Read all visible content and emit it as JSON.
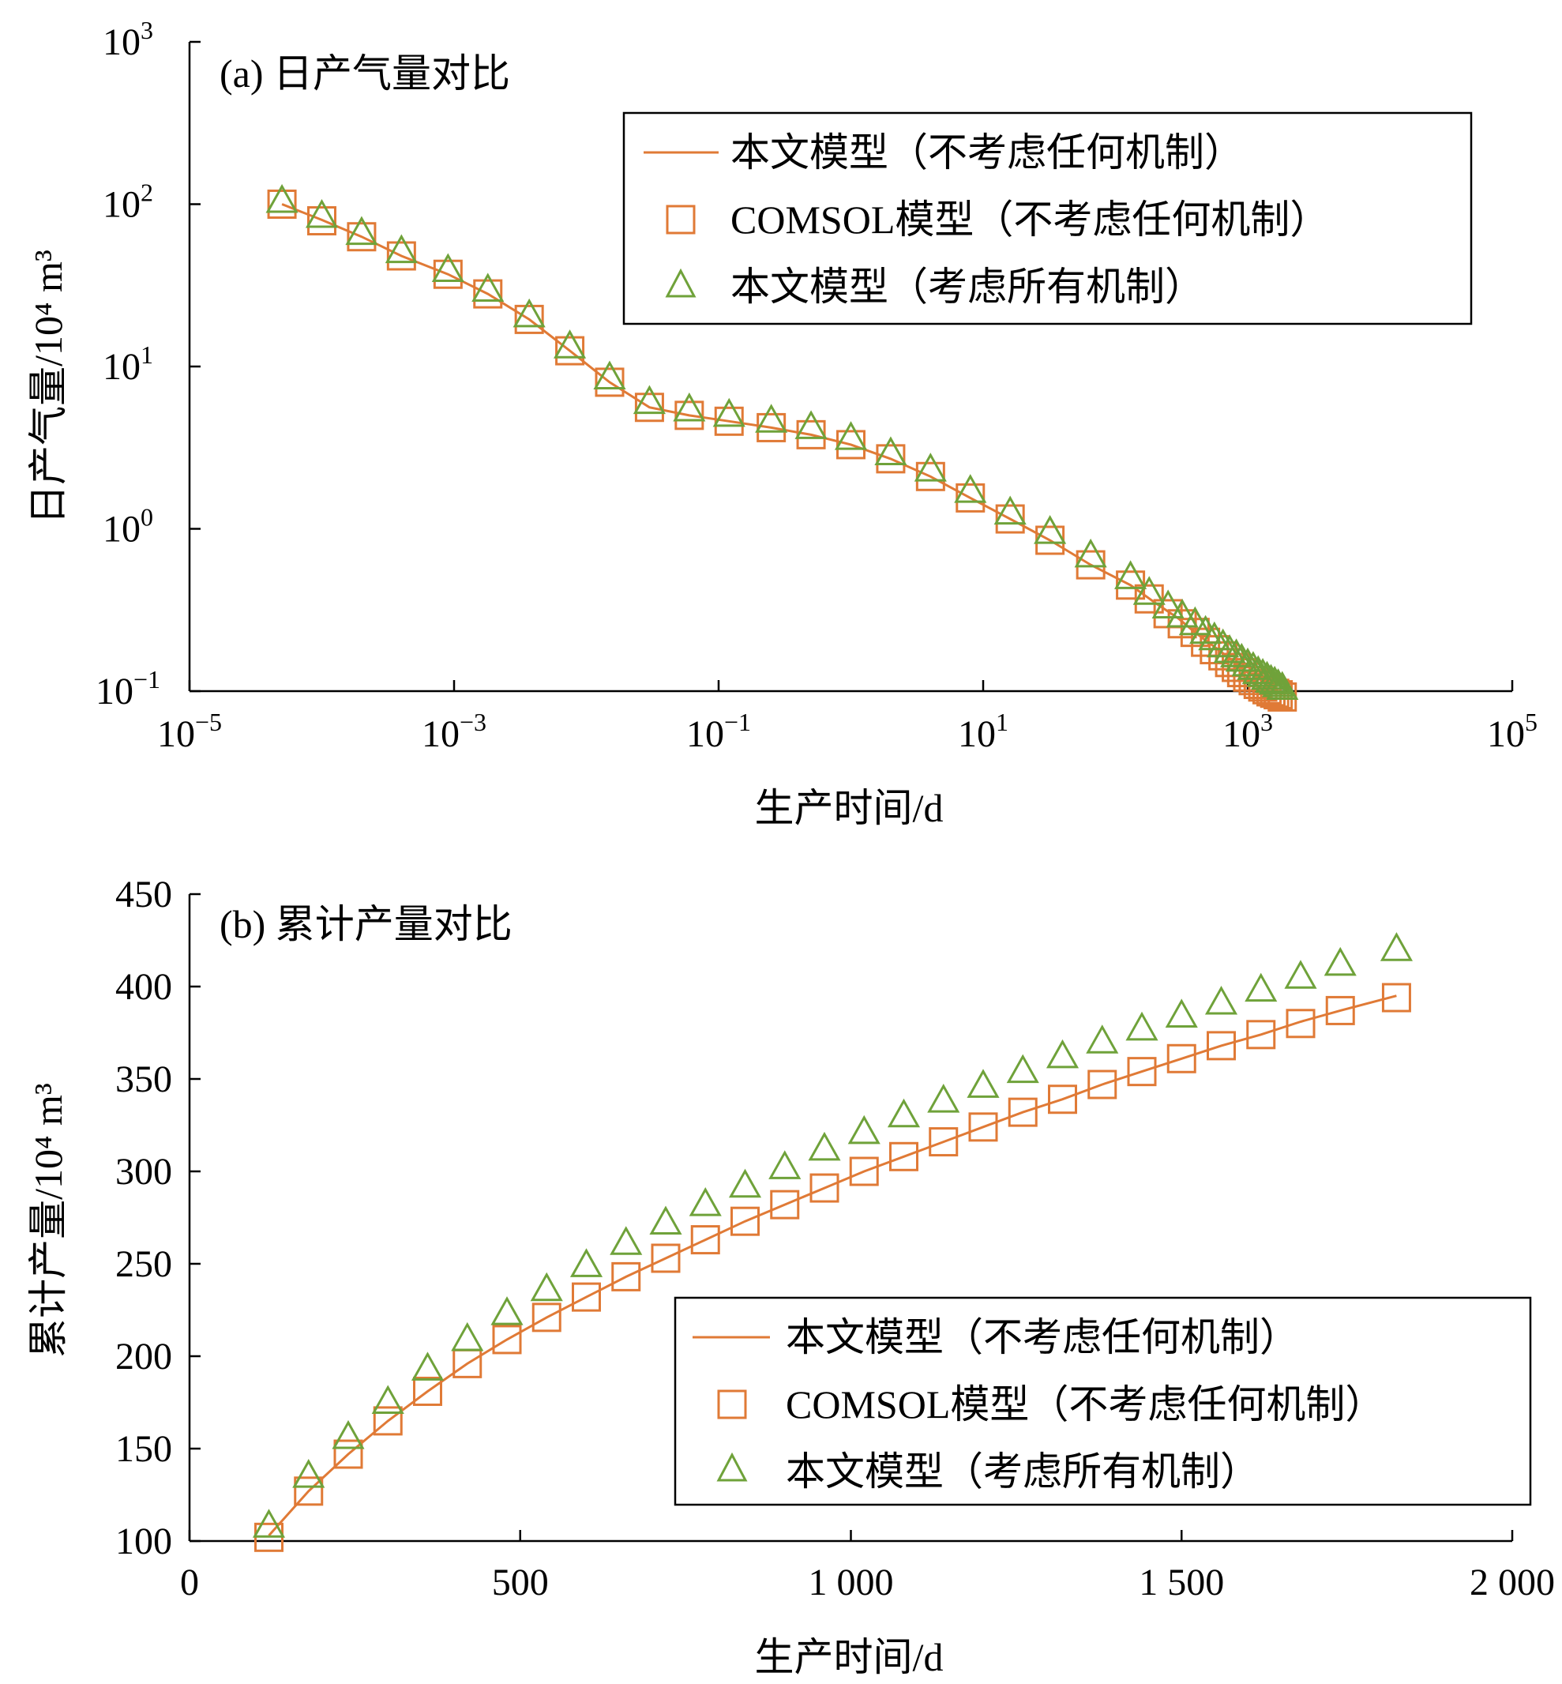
{
  "colors": {
    "model_line": "#E07A36",
    "comsol_marker": "#E07A36",
    "all_mech_marker": "#6FA23A"
  },
  "legend_labels": {
    "model_no_mech": "本文模型（不考虑任何机制）",
    "comsol_no_mech": "COMSOL模型（不考虑任何机制）",
    "model_all_mech": "本文模型（考虑所有机制）"
  },
  "chart_data": [
    {
      "type": "line",
      "id": "a",
      "title": "(a) 日产气量对比",
      "xlabel": "生产时间/d",
      "ylabel": "日产气量/10⁴ m³",
      "xscale": "log",
      "yscale": "log",
      "xlim": [
        1e-05,
        100000.0
      ],
      "ylim": [
        0.1,
        1000
      ],
      "xticks": [
        {
          "base": "10",
          "exp": "−5"
        },
        {
          "base": "10",
          "exp": "−3"
        },
        {
          "base": "10",
          "exp": "−1"
        },
        {
          "base": "10",
          "exp": "1"
        },
        {
          "base": "10",
          "exp": "3"
        },
        {
          "base": "10",
          "exp": "5"
        }
      ],
      "yticks": [
        {
          "base": "10",
          "exp": "−1"
        },
        {
          "base": "10",
          "exp": "0"
        },
        {
          "base": "10",
          "exp": "1"
        },
        {
          "base": "10",
          "exp": "2"
        },
        {
          "base": "10",
          "exp": "3"
        }
      ],
      "legend_position": "top-right",
      "series": [
        {
          "name": "本文模型（不考虑任何机制）",
          "style": "line",
          "x": [
            5e-05,
            0.0001,
            0.0002,
            0.0004,
            0.0009,
            0.0018,
            0.0037,
            0.0075,
            0.015,
            0.03,
            0.06,
            0.12,
            0.25,
            0.5,
            1,
            2,
            4,
            8,
            16,
            32,
            65,
            130,
            200,
            300,
            400,
            600,
            800,
            1000,
            1300,
            1700,
            1825
          ],
          "values": [
            100,
            80,
            63,
            48,
            37,
            28,
            19.5,
            12.5,
            8,
            5.6,
            5.0,
            4.6,
            4.2,
            3.8,
            3.3,
            2.7,
            2.1,
            1.55,
            1.15,
            0.85,
            0.6,
            0.45,
            0.35,
            0.28,
            0.23,
            0.18,
            0.15,
            0.13,
            0.115,
            0.1,
            0.095
          ]
        },
        {
          "name": "COMSOL模型（不考虑任何机制）",
          "style": "square",
          "x": [
            5e-05,
            0.0001,
            0.0002,
            0.0004,
            0.0009,
            0.0018,
            0.0037,
            0.0075,
            0.015,
            0.03,
            0.06,
            0.12,
            0.25,
            0.5,
            1,
            2,
            4,
            8,
            16,
            32,
            65,
            130,
            180,
            250,
            320,
            400,
            480,
            560,
            650,
            730,
            820,
            900,
            1000,
            1100,
            1200,
            1300,
            1400,
            1500,
            1600,
            1700,
            1825
          ],
          "values": [
            100,
            79,
            63,
            48,
            37,
            28,
            19.5,
            12.5,
            8,
            5.6,
            5.0,
            4.6,
            4.2,
            3.8,
            3.3,
            2.7,
            2.1,
            1.55,
            1.15,
            0.85,
            0.6,
            0.45,
            0.37,
            0.3,
            0.26,
            0.23,
            0.2,
            0.18,
            0.165,
            0.15,
            0.14,
            0.13,
            0.122,
            0.116,
            0.11,
            0.106,
            0.102,
            0.099,
            0.097,
            0.095,
            0.092
          ]
        },
        {
          "name": "本文模型（考虑所有机制）",
          "style": "triangle",
          "x": [
            5e-05,
            0.0001,
            0.0002,
            0.0004,
            0.0009,
            0.0018,
            0.0037,
            0.0075,
            0.015,
            0.03,
            0.06,
            0.12,
            0.25,
            0.5,
            1,
            2,
            4,
            8,
            16,
            32,
            65,
            130,
            180,
            250,
            320,
            400,
            480,
            560,
            650,
            730,
            820,
            900,
            1000,
            1100,
            1200,
            1300,
            1400,
            1500,
            1600,
            1700,
            1825
          ],
          "values": [
            104,
            84,
            66,
            51,
            39,
            29.5,
            20.5,
            13.2,
            8.5,
            6.0,
            5.4,
            5.0,
            4.6,
            4.2,
            3.6,
            2.9,
            2.3,
            1.7,
            1.25,
            0.95,
            0.68,
            0.5,
            0.4,
            0.33,
            0.29,
            0.26,
            0.23,
            0.21,
            0.19,
            0.175,
            0.165,
            0.155,
            0.145,
            0.138,
            0.13,
            0.125,
            0.12,
            0.115,
            0.112,
            0.108,
            0.104
          ]
        }
      ]
    },
    {
      "type": "line",
      "id": "b",
      "title": "(b) 累计产量对比",
      "xlabel": "生产时间/d",
      "ylabel": "累计产量/10⁴ m³",
      "xscale": "linear",
      "yscale": "linear",
      "xlim": [
        0,
        2000
      ],
      "ylim": [
        100,
        450
      ],
      "xticks": [
        "0",
        "500",
        "1 000",
        "1 500",
        "2 000"
      ],
      "xtick_values": [
        0,
        500,
        1000,
        1500,
        2000
      ],
      "yticks": [
        "100",
        "150",
        "200",
        "250",
        "300",
        "350",
        "400",
        "450"
      ],
      "ytick_values": [
        100,
        150,
        200,
        250,
        300,
        350,
        400,
        450
      ],
      "legend_position": "bottom-right",
      "series": [
        {
          "name": "本文模型（不考虑任何机制）",
          "style": "line",
          "x": [
            120,
            180,
            240,
            300,
            360,
            420,
            480,
            540,
            600,
            660,
            720,
            780,
            840,
            900,
            960,
            1020,
            1080,
            1140,
            1200,
            1260,
            1320,
            1380,
            1440,
            1500,
            1560,
            1620,
            1680,
            1740,
            1825
          ],
          "values": [
            103,
            127,
            147,
            165,
            181,
            196,
            209,
            221,
            232,
            243,
            253,
            263,
            273,
            282,
            291,
            300,
            308,
            316,
            324,
            332,
            339,
            347,
            354,
            361,
            368,
            374,
            381,
            387,
            395
          ]
        },
        {
          "name": "COMSOL模型（不考虑任何机制）",
          "style": "square",
          "x": [
            120,
            180,
            240,
            300,
            360,
            420,
            480,
            540,
            600,
            660,
            720,
            780,
            840,
            900,
            960,
            1020,
            1080,
            1140,
            1200,
            1260,
            1320,
            1380,
            1440,
            1500,
            1560,
            1620,
            1680,
            1740,
            1825
          ],
          "values": [
            102,
            127,
            147,
            165,
            181,
            196,
            209,
            221,
            232,
            243,
            253,
            263,
            273,
            282,
            291,
            300,
            308,
            316,
            324,
            332,
            339,
            347,
            354,
            361,
            368,
            374,
            380,
            387,
            394
          ]
        },
        {
          "name": "本文模型（考虑所有机制）",
          "style": "triangle",
          "x": [
            120,
            180,
            240,
            300,
            360,
            420,
            480,
            540,
            600,
            660,
            720,
            780,
            840,
            900,
            960,
            1020,
            1080,
            1140,
            1200,
            1260,
            1320,
            1380,
            1440,
            1500,
            1560,
            1620,
            1680,
            1740,
            1825
          ],
          "values": [
            108,
            135,
            156,
            175,
            193,
            209,
            223,
            236,
            249,
            261,
            272,
            282,
            292,
            302,
            312,
            321,
            330,
            338,
            346,
            354,
            362,
            370,
            377,
            384,
            391,
            398,
            405,
            412,
            420
          ]
        }
      ]
    }
  ]
}
